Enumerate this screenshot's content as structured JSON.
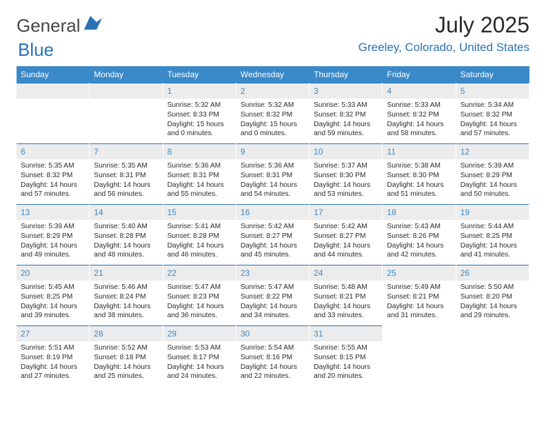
{
  "logo": {
    "text_general": "General",
    "text_blue": "Blue",
    "shape_color": "#2a72b5"
  },
  "header": {
    "month_title": "July 2025",
    "location": "Greeley, Colorado, United States"
  },
  "colors": {
    "header_blue": "#3a89c9",
    "accent_blue": "#2a72b5",
    "day_bg": "#ececec",
    "text": "#2a2a2a",
    "white": "#ffffff"
  },
  "day_names": [
    "Sunday",
    "Monday",
    "Tuesday",
    "Wednesday",
    "Thursday",
    "Friday",
    "Saturday"
  ],
  "leading_blanks": 2,
  "days": [
    {
      "n": "1",
      "sunrise": "5:32 AM",
      "sunset": "8:33 PM",
      "day_h": "15",
      "day_m": "0"
    },
    {
      "n": "2",
      "sunrise": "5:32 AM",
      "sunset": "8:32 PM",
      "day_h": "15",
      "day_m": "0"
    },
    {
      "n": "3",
      "sunrise": "5:33 AM",
      "sunset": "8:32 PM",
      "day_h": "14",
      "day_m": "59"
    },
    {
      "n": "4",
      "sunrise": "5:33 AM",
      "sunset": "8:32 PM",
      "day_h": "14",
      "day_m": "58"
    },
    {
      "n": "5",
      "sunrise": "5:34 AM",
      "sunset": "8:32 PM",
      "day_h": "14",
      "day_m": "57"
    },
    {
      "n": "6",
      "sunrise": "5:35 AM",
      "sunset": "8:32 PM",
      "day_h": "14",
      "day_m": "57"
    },
    {
      "n": "7",
      "sunrise": "5:35 AM",
      "sunset": "8:31 PM",
      "day_h": "14",
      "day_m": "56"
    },
    {
      "n": "8",
      "sunrise": "5:36 AM",
      "sunset": "8:31 PM",
      "day_h": "14",
      "day_m": "55"
    },
    {
      "n": "9",
      "sunrise": "5:36 AM",
      "sunset": "8:31 PM",
      "day_h": "14",
      "day_m": "54"
    },
    {
      "n": "10",
      "sunrise": "5:37 AM",
      "sunset": "8:30 PM",
      "day_h": "14",
      "day_m": "53"
    },
    {
      "n": "11",
      "sunrise": "5:38 AM",
      "sunset": "8:30 PM",
      "day_h": "14",
      "day_m": "51"
    },
    {
      "n": "12",
      "sunrise": "5:39 AM",
      "sunset": "8:29 PM",
      "day_h": "14",
      "day_m": "50"
    },
    {
      "n": "13",
      "sunrise": "5:39 AM",
      "sunset": "8:29 PM",
      "day_h": "14",
      "day_m": "49"
    },
    {
      "n": "14",
      "sunrise": "5:40 AM",
      "sunset": "8:28 PM",
      "day_h": "14",
      "day_m": "48"
    },
    {
      "n": "15",
      "sunrise": "5:41 AM",
      "sunset": "8:28 PM",
      "day_h": "14",
      "day_m": "46"
    },
    {
      "n": "16",
      "sunrise": "5:42 AM",
      "sunset": "8:27 PM",
      "day_h": "14",
      "day_m": "45"
    },
    {
      "n": "17",
      "sunrise": "5:42 AM",
      "sunset": "8:27 PM",
      "day_h": "14",
      "day_m": "44"
    },
    {
      "n": "18",
      "sunrise": "5:43 AM",
      "sunset": "8:26 PM",
      "day_h": "14",
      "day_m": "42"
    },
    {
      "n": "19",
      "sunrise": "5:44 AM",
      "sunset": "8:25 PM",
      "day_h": "14",
      "day_m": "41"
    },
    {
      "n": "20",
      "sunrise": "5:45 AM",
      "sunset": "8:25 PM",
      "day_h": "14",
      "day_m": "39"
    },
    {
      "n": "21",
      "sunrise": "5:46 AM",
      "sunset": "8:24 PM",
      "day_h": "14",
      "day_m": "38"
    },
    {
      "n": "22",
      "sunrise": "5:47 AM",
      "sunset": "8:23 PM",
      "day_h": "14",
      "day_m": "36"
    },
    {
      "n": "23",
      "sunrise": "5:47 AM",
      "sunset": "8:22 PM",
      "day_h": "14",
      "day_m": "34"
    },
    {
      "n": "24",
      "sunrise": "5:48 AM",
      "sunset": "8:21 PM",
      "day_h": "14",
      "day_m": "33"
    },
    {
      "n": "25",
      "sunrise": "5:49 AM",
      "sunset": "8:21 PM",
      "day_h": "14",
      "day_m": "31"
    },
    {
      "n": "26",
      "sunrise": "5:50 AM",
      "sunset": "8:20 PM",
      "day_h": "14",
      "day_m": "29"
    },
    {
      "n": "27",
      "sunrise": "5:51 AM",
      "sunset": "8:19 PM",
      "day_h": "14",
      "day_m": "27"
    },
    {
      "n": "28",
      "sunrise": "5:52 AM",
      "sunset": "8:18 PM",
      "day_h": "14",
      "day_m": "25"
    },
    {
      "n": "29",
      "sunrise": "5:53 AM",
      "sunset": "8:17 PM",
      "day_h": "14",
      "day_m": "24"
    },
    {
      "n": "30",
      "sunrise": "5:54 AM",
      "sunset": "8:16 PM",
      "day_h": "14",
      "day_m": "22"
    },
    {
      "n": "31",
      "sunrise": "5:55 AM",
      "sunset": "8:15 PM",
      "day_h": "14",
      "day_m": "20"
    }
  ],
  "labels": {
    "sunrise": "Sunrise:",
    "sunset": "Sunset:",
    "daylight": "Daylight:",
    "hours": "hours",
    "and": "and",
    "minutes": "minutes."
  }
}
